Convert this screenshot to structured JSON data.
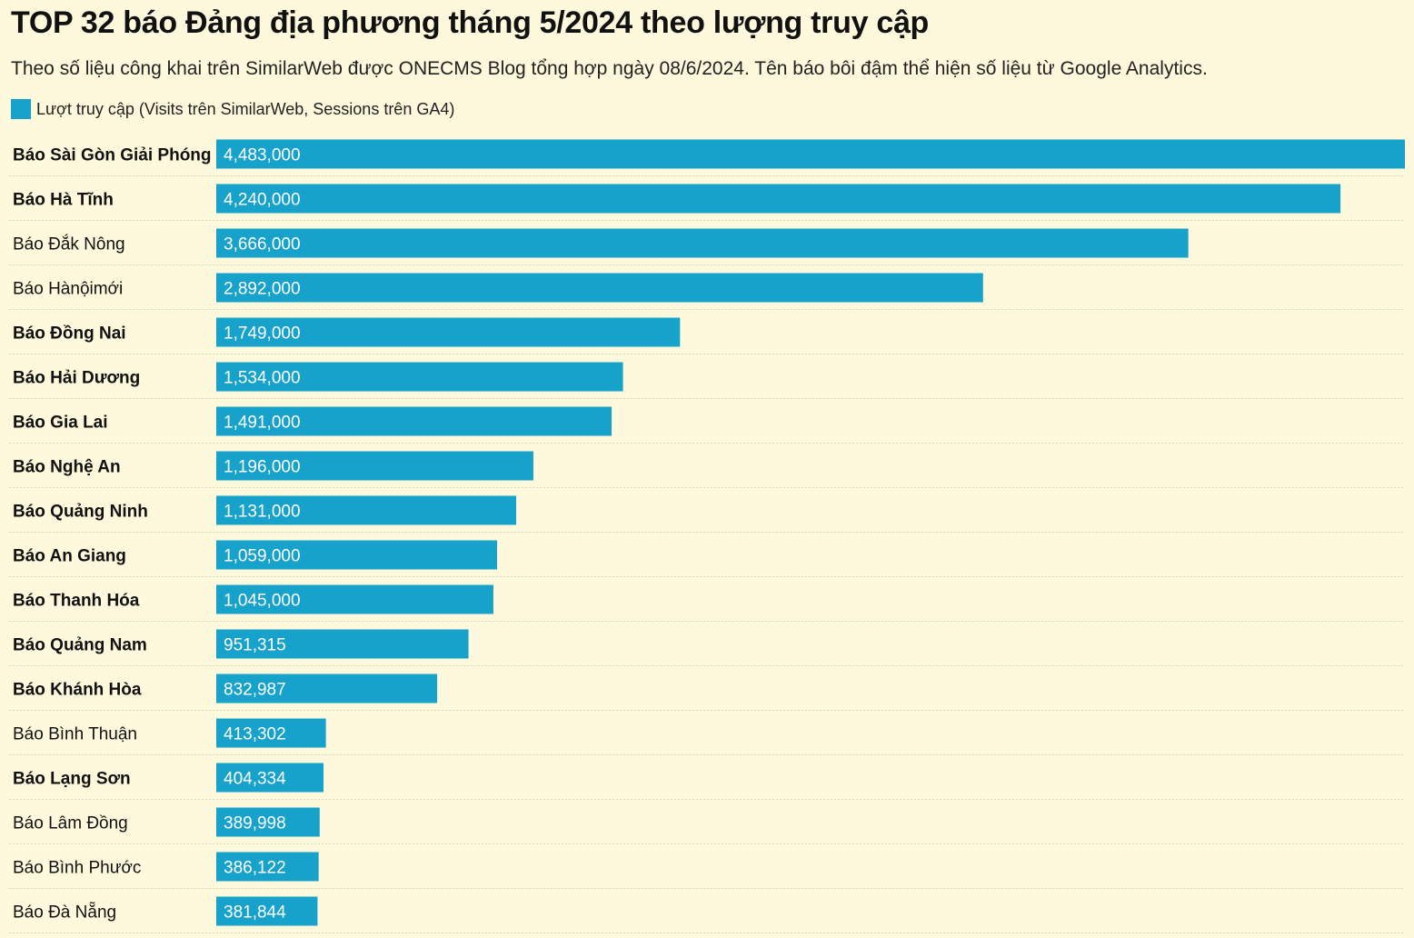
{
  "colors": {
    "bar": "#17a2cc",
    "background": "#fef9dc",
    "divider": "#d9d3b5"
  },
  "chart_data": {
    "type": "bar",
    "orientation": "horizontal",
    "title": "TOP 32 báo Đảng địa phương tháng 5/2024 theo lượng truy cập",
    "subtitle": "Theo số liệu công khai trên SimilarWeb được ONECMS Blog tổng hợp ngày 08/6/2024. Tên báo bôi đậm thể hiện số liệu từ Google Analytics.",
    "legend": "Lượt truy cập (Visits trên SimilarWeb, Sessions trên GA4)",
    "max_value": 4483000,
    "categories": [
      {
        "label": "Báo Sài Gòn Giải Phóng",
        "value": 4483000,
        "value_label": "4,483,000",
        "bold": true
      },
      {
        "label": "Báo Hà Tĩnh",
        "value": 4240000,
        "value_label": "4,240,000",
        "bold": true
      },
      {
        "label": "Báo Đắk Nông",
        "value": 3666000,
        "value_label": "3,666,000",
        "bold": false
      },
      {
        "label": "Báo Hànộimới",
        "value": 2892000,
        "value_label": "2,892,000",
        "bold": false
      },
      {
        "label": "Báo Đồng Nai",
        "value": 1749000,
        "value_label": "1,749,000",
        "bold": true
      },
      {
        "label": "Báo Hải Dương",
        "value": 1534000,
        "value_label": "1,534,000",
        "bold": true
      },
      {
        "label": "Báo Gia Lai",
        "value": 1491000,
        "value_label": "1,491,000",
        "bold": true
      },
      {
        "label": "Báo Nghệ An",
        "value": 1196000,
        "value_label": "1,196,000",
        "bold": true
      },
      {
        "label": "Báo Quảng Ninh",
        "value": 1131000,
        "value_label": "1,131,000",
        "bold": true
      },
      {
        "label": "Báo An Giang",
        "value": 1059000,
        "value_label": "1,059,000",
        "bold": true
      },
      {
        "label": "Báo Thanh Hóa",
        "value": 1045000,
        "value_label": "1,045,000",
        "bold": true
      },
      {
        "label": "Báo Quảng Nam",
        "value": 951315,
        "value_label": "951,315",
        "bold": true
      },
      {
        "label": "Báo Khánh Hòa",
        "value": 832987,
        "value_label": "832,987",
        "bold": true
      },
      {
        "label": "Báo Bình Thuận",
        "value": 413302,
        "value_label": "413,302",
        "bold": false
      },
      {
        "label": "Báo Lạng Sơn",
        "value": 404334,
        "value_label": "404,334",
        "bold": true
      },
      {
        "label": "Báo Lâm Đồng",
        "value": 389998,
        "value_label": "389,998",
        "bold": false
      },
      {
        "label": "Báo Bình Phước",
        "value": 386122,
        "value_label": "386,122",
        "bold": false
      },
      {
        "label": "Báo Đà Nẵng",
        "value": 381844,
        "value_label": "381,844",
        "bold": false
      }
    ]
  }
}
